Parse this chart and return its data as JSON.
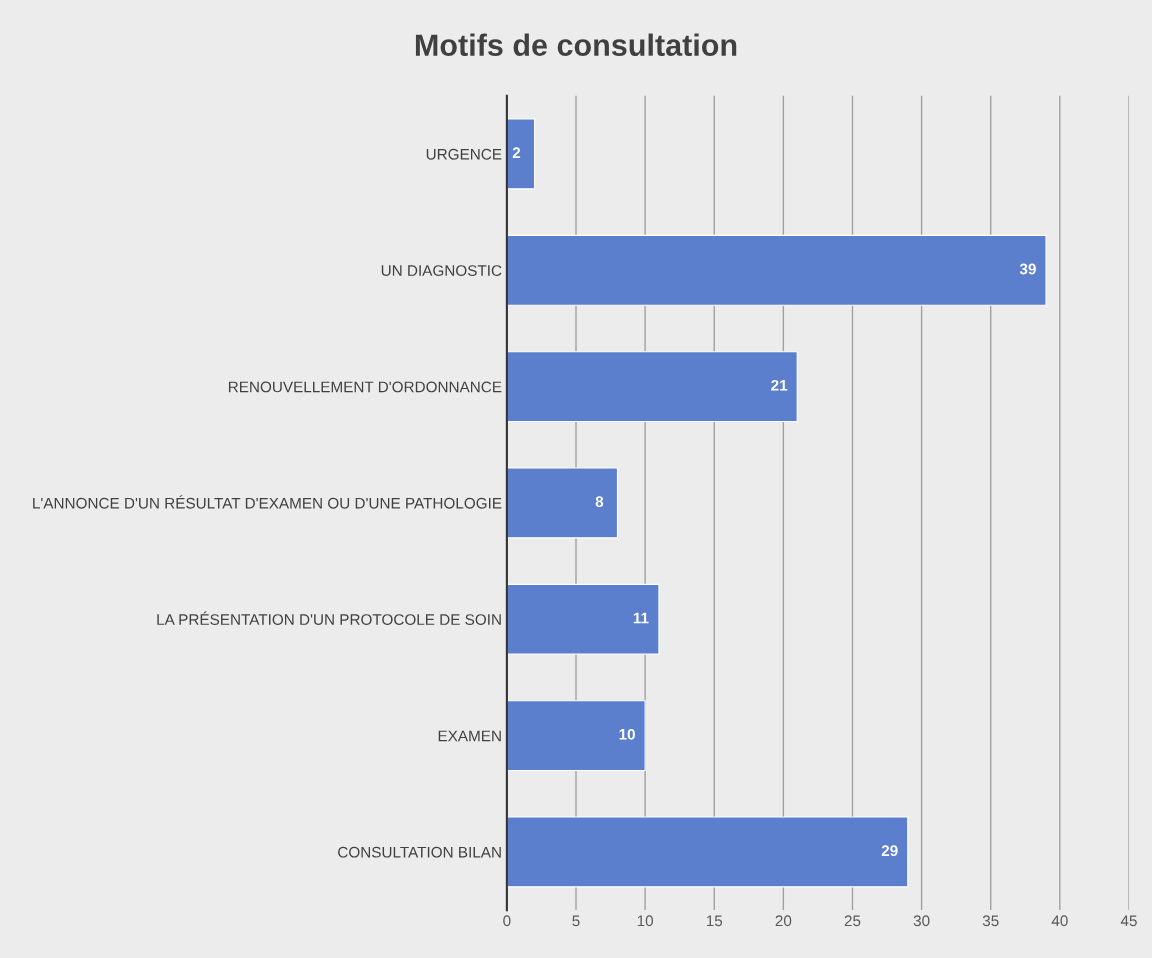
{
  "chart_data": {
    "type": "bar",
    "orientation": "horizontal",
    "title": "Motifs de consultation",
    "categories": [
      "URGENCE",
      "UN DIAGNOSTIC",
      "RENOUVELLEMENT D'ORDONNANCE",
      "L'ANNONCE D'UN RÉSULTAT D'EXAMEN OU D'UNE PATHOLOGIE",
      "LA PRÉSENTATION D'UN PROTOCOLE DE SOIN",
      "EXAMEN",
      "CONSULTATION BILAN"
    ],
    "values": [
      2,
      39,
      21,
      8,
      11,
      10,
      29
    ],
    "color": "#5b7fcc",
    "xlim": [
      0,
      45
    ],
    "xticks": [
      0,
      5,
      10,
      15,
      20,
      25,
      30,
      35,
      40,
      45
    ],
    "grid": "x",
    "data_labels": true
  }
}
